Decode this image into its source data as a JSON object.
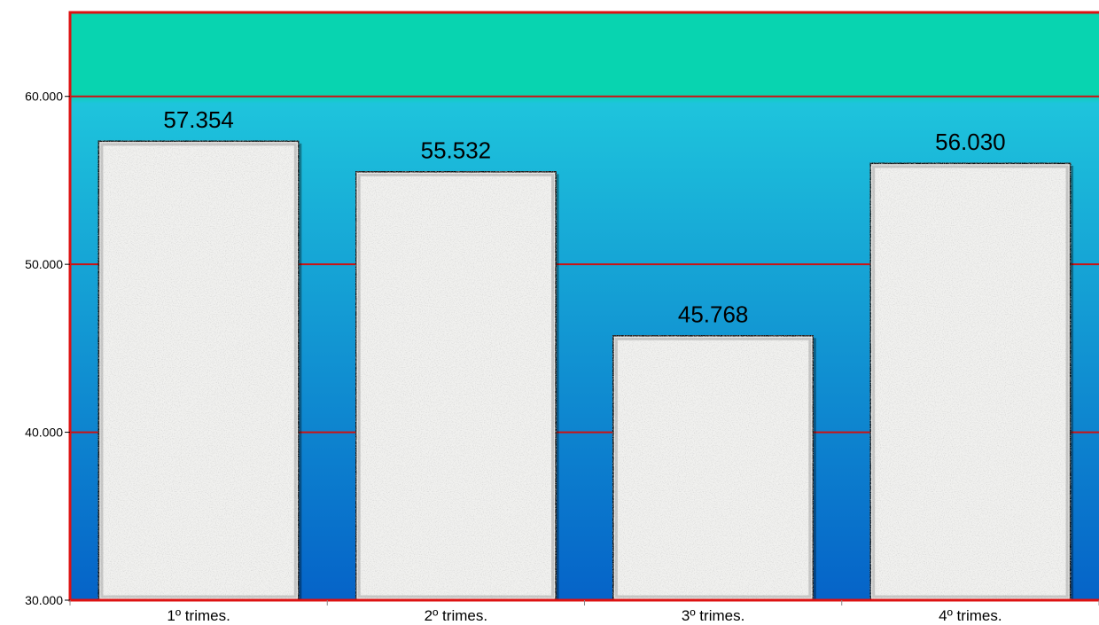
{
  "chart_data": {
    "type": "bar",
    "categories": [
      "1º trimes.",
      "2º trimes.",
      "3º trimes.",
      "4º trimes."
    ],
    "values": [
      57354,
      55532,
      45768,
      56030
    ],
    "value_labels": [
      "57.354",
      "55.532",
      "45.768",
      "56.030"
    ],
    "ylim": [
      30000,
      65000
    ],
    "yticks": [
      30000,
      40000,
      50000,
      60000
    ],
    "ytick_labels": [
      "30.000",
      "40.000",
      "50.000",
      "60.000"
    ],
    "grid": true,
    "legend": "none",
    "title": "",
    "xlabel": "",
    "ylabel": ""
  },
  "colors": {
    "frame": "#dd1111",
    "gridline": "#cc1111",
    "background_top": "#08d4b0",
    "background_mid": "#1ec4dc",
    "background_bottom": "#0563c8",
    "bar_fill": "#f1f1ef",
    "bar_border": "#111111"
  }
}
